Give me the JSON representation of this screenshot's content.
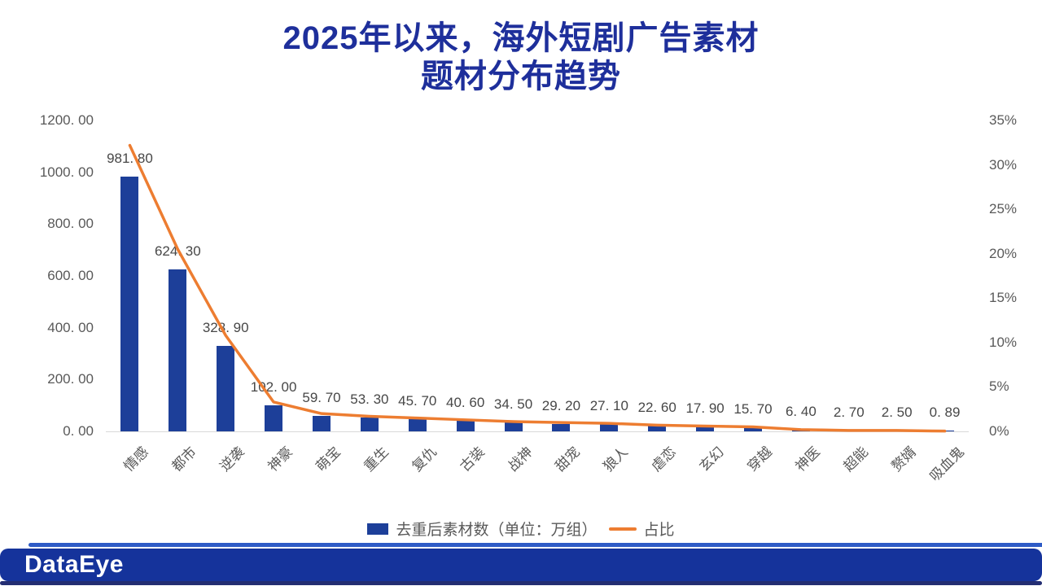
{
  "title": {
    "line1": "2025年以来，海外短剧广告素材",
    "line2": "题材分布趋势"
  },
  "chart_data": {
    "type": "bar",
    "subtype": "bar-line-combo",
    "categories": [
      "情感",
      "都市",
      "逆袭",
      "神豪",
      "萌宝",
      "重生",
      "复仇",
      "古装",
      "战神",
      "甜宠",
      "狼人",
      "虐恋",
      "玄幻",
      "穿越",
      "神医",
      "超能",
      "赘婿",
      "吸血鬼"
    ],
    "series": [
      {
        "name": "去重后素材数（单位：万组）",
        "type": "bar",
        "color": "#1d3f99",
        "values": [
          981.8,
          624.3,
          328.9,
          102.0,
          59.7,
          53.3,
          45.7,
          40.6,
          34.5,
          29.2,
          27.1,
          22.6,
          17.9,
          15.7,
          6.4,
          2.7,
          2.5,
          0.89
        ],
        "data_labels": [
          "981. 80",
          "624. 30",
          "328. 90",
          "102. 00",
          "59. 70",
          "53. 30",
          "45. 70",
          "40. 60",
          "34. 50",
          "29. 20",
          "27. 10",
          "22. 60",
          "17. 90",
          "15. 70",
          "6. 40",
          "2. 70",
          "2. 50",
          "0. 89"
        ]
      },
      {
        "name": "占比",
        "type": "line",
        "color": "#ED7D31",
        "values_percent_estimated": [
          32.2,
          20.5,
          10.8,
          3.3,
          2.0,
          1.7,
          1.5,
          1.3,
          1.1,
          1.0,
          0.9,
          0.7,
          0.6,
          0.5,
          0.2,
          0.1,
          0.1,
          0.03
        ]
      }
    ],
    "left_axis": {
      "min": 0,
      "max": 1200,
      "ticks": [
        "1200. 00",
        "1000. 00",
        "800. 00",
        "600. 00",
        "400. 00",
        "200. 00",
        "0. 00"
      ]
    },
    "right_axis": {
      "min": 0,
      "max": 35,
      "ticks": [
        "35%",
        "30%",
        "25%",
        "20%",
        "15%",
        "10%",
        "5%",
        "0%"
      ]
    },
    "grid": false,
    "legend_position": "bottom"
  },
  "legend": {
    "bar_label": "去重后素材数（单位：万组）",
    "line_label": "占比"
  },
  "footer": {
    "logo_text": "DataEye"
  },
  "colors": {
    "title": "#1e2f9b",
    "bar": "#1d3f99",
    "line": "#ED7D31",
    "axis_text": "#595959",
    "footer_bar": "#15339b",
    "footer_accent": "#2e5bc6",
    "footer_underline": "#232d72"
  }
}
